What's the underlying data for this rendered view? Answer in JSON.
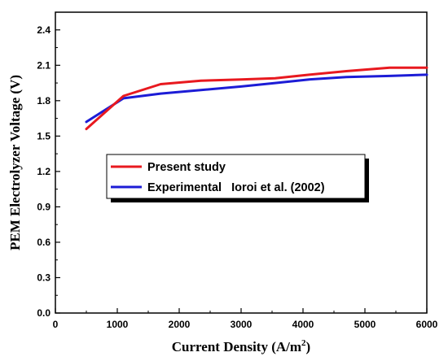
{
  "chart_data": {
    "type": "line",
    "xlabel": "Current Density (A/m",
    "xlabel_superscript": "2",
    "xlabel_suffix": ")",
    "ylabel": "PEM Electrolyzer Voltage (V)",
    "xlim": [
      0,
      6000
    ],
    "ylim": [
      0.0,
      2.55
    ],
    "xticks": [
      0,
      1000,
      2000,
      3000,
      4000,
      5000,
      6000
    ],
    "xtick_labels": [
      "0",
      "1000",
      "2000",
      "3000",
      "4000",
      "5000",
      "6000"
    ],
    "yticks": [
      0.0,
      0.3,
      0.6,
      0.9,
      1.2,
      1.5,
      1.8,
      2.1,
      2.4
    ],
    "ytick_labels": [
      "0.0",
      "0.3",
      "0.6",
      "0.9",
      "1.2",
      "1.5",
      "1.8",
      "2.1",
      "2.4"
    ],
    "grid": false,
    "legend_position": "center-left",
    "series": [
      {
        "name": "Present study",
        "color": "#e8191f",
        "x": [
          500,
          1100,
          1700,
          2350,
          3000,
          3550,
          4100,
          4700,
          5400,
          6000
        ],
        "y": [
          1.56,
          1.84,
          1.94,
          1.97,
          1.98,
          1.99,
          2.02,
          2.05,
          2.08,
          2.08
        ]
      },
      {
        "name": "Experimental   Ioroi et al. (2002)",
        "color": "#1c1cd6",
        "x": [
          500,
          1100,
          1700,
          2350,
          3000,
          3550,
          4100,
          4700,
          5400,
          6000
        ],
        "y": [
          1.62,
          1.82,
          1.86,
          1.89,
          1.92,
          1.95,
          1.98,
          2.0,
          2.01,
          2.02
        ]
      }
    ]
  }
}
